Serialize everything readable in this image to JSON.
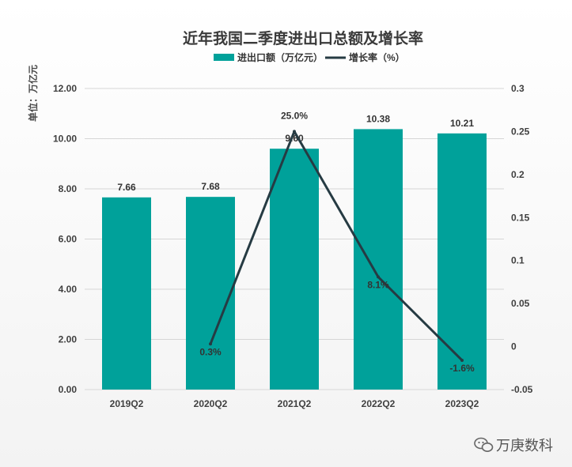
{
  "chart_data": {
    "type": "bar",
    "title": "近年我国二季度进出口总额及增长率",
    "ylabel": "单位：万亿元",
    "categories": [
      "2019Q2",
      "2020Q2",
      "2021Q2",
      "2022Q2",
      "2023Q2"
    ],
    "series": [
      {
        "name": "进出口额（万亿元）",
        "type": "bar",
        "axis": "left",
        "values": [
          7.66,
          7.68,
          9.6,
          10.38,
          10.21
        ],
        "labels": [
          "7.66",
          "7.68",
          "9.60",
          "10.38",
          "10.21"
        ],
        "color": "#00A19A"
      },
      {
        "name": "增长率（%）",
        "type": "line",
        "axis": "right",
        "x": [
          "2020Q2",
          "2021Q2",
          "2022Q2",
          "2023Q2"
        ],
        "values": [
          0.003,
          0.25,
          0.081,
          -0.016
        ],
        "labels": [
          "0.3%",
          "25.0%",
          "8.1%",
          "-1.6%"
        ],
        "color": "#263B43"
      }
    ],
    "ylim_left": [
      0,
      12
    ],
    "yticks_left": [
      "0.00",
      "2.00",
      "4.00",
      "6.00",
      "8.00",
      "10.00",
      "12.00"
    ],
    "ylim_right": [
      -0.05,
      0.3
    ],
    "yticks_right": [
      "-0.05",
      "0",
      "0.05",
      "0.1",
      "0.15",
      "0.2",
      "0.25",
      "0.3"
    ],
    "grid": true,
    "legend_position": "top-center"
  },
  "watermark": {
    "text": "万庚数科",
    "icon": "wechat-icon"
  }
}
